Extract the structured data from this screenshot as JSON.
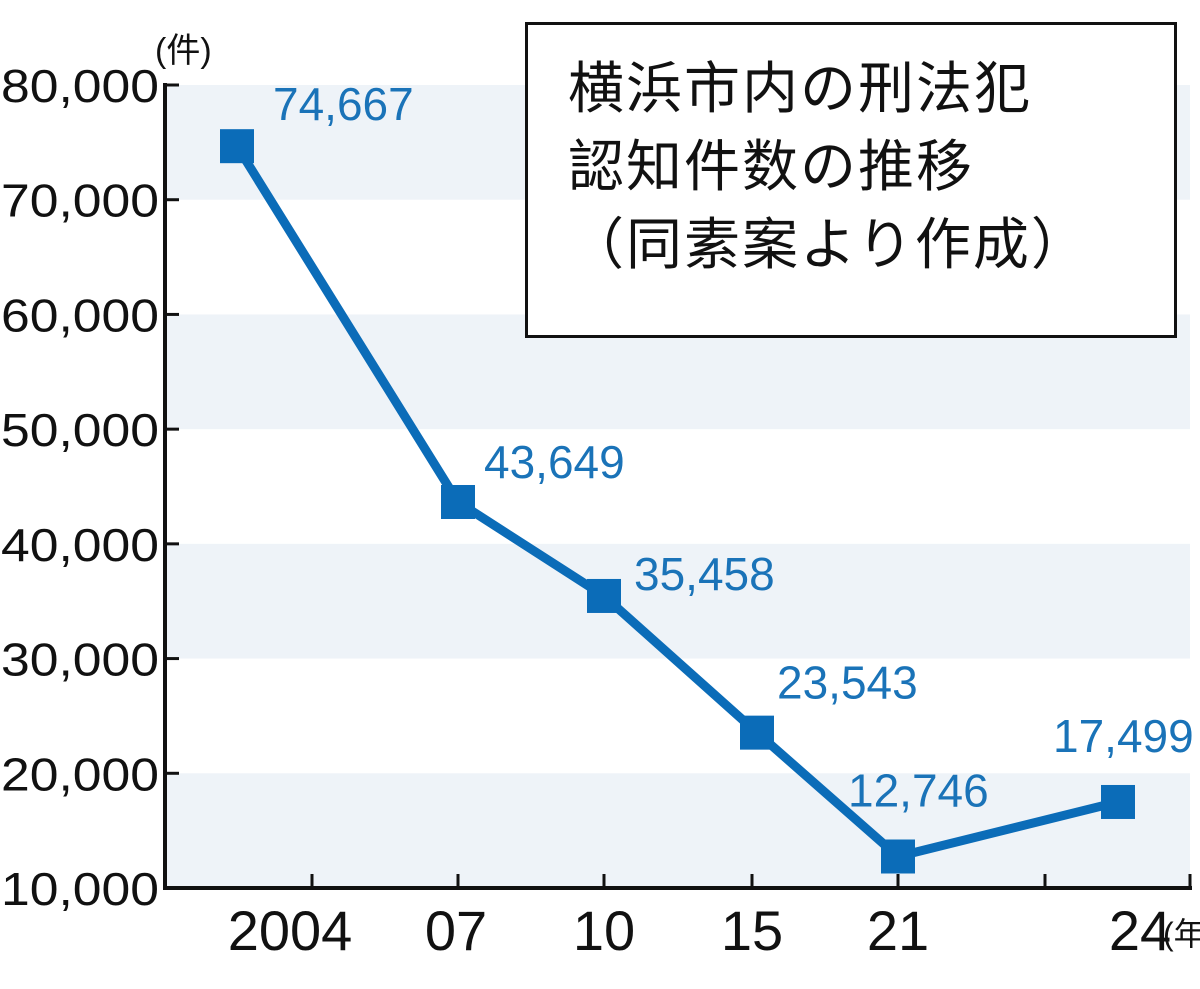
{
  "chart_data": {
    "type": "line",
    "title_lines": [
      "横浜市内の刑法犯",
      "認知件数の推移",
      "（同素案より作成）"
    ],
    "y_unit": "(件)",
    "x_unit": "(年)",
    "ylim": [
      10000,
      80000
    ],
    "y_ticks": [
      10000,
      20000,
      30000,
      40000,
      50000,
      60000,
      70000,
      80000
    ],
    "y_tick_labels": [
      "10,000",
      "20,000",
      "30,000",
      "40,000",
      "50,000",
      "60,000",
      "70,000",
      "80,000"
    ],
    "categories": [
      "2004",
      "07",
      "10",
      "15",
      "21",
      "24"
    ],
    "values": [
      74667,
      43649,
      35458,
      23543,
      12746,
      17499
    ],
    "data_labels": [
      "74,667",
      "43,649",
      "35,458",
      "23,543",
      "12,746",
      "17,499"
    ],
    "grid": "alternating horizontal bands",
    "colors": {
      "line": "#0b6cb8",
      "label": "#1a73b8",
      "band": "#eef3f8",
      "axis": "#111111"
    }
  }
}
